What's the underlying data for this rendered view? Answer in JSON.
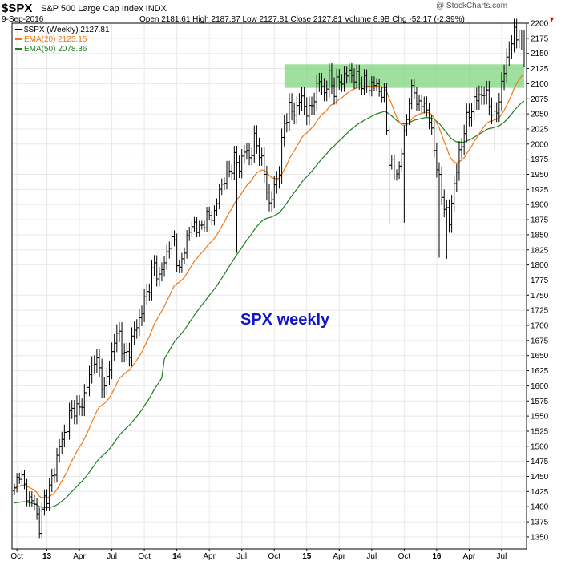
{
  "header": {
    "symbol": "$SPX",
    "name": "S&P 500 Large Cap Index INDX",
    "date": "9-Sep-2016",
    "quote": "Open 2181.61  High 2187.87  Low 2127.81  Close 2127.81  Volume 8.9B  Chg -52.17 (-2.39%)",
    "chg_arrow": "▼",
    "watermark": "@ StockCharts.com"
  },
  "legend": {
    "price": "$SPX (Weekly) 2127.81",
    "ema20": "EMA(20) 2125.15",
    "ema50": "EMA(50) 2078.36"
  },
  "chart_data": {
    "type": "ohlc",
    "annotation": "SPX weekly",
    "ylim": [
      1330,
      2200
    ],
    "yticks": [
      1350,
      1375,
      1400,
      1425,
      1450,
      1475,
      1500,
      1525,
      1550,
      1575,
      1600,
      1625,
      1650,
      1675,
      1700,
      1725,
      1750,
      1775,
      1800,
      1825,
      1850,
      1875,
      1900,
      1925,
      1950,
      1975,
      2000,
      2025,
      2050,
      2075,
      2100,
      2125,
      2150,
      2175,
      2200
    ],
    "xticks": [
      {
        "label": "Oct",
        "week": 1
      },
      {
        "label": "13",
        "week": 13
      },
      {
        "label": "Apr",
        "week": 26
      },
      {
        "label": "Jul",
        "week": 39
      },
      {
        "label": "Oct",
        "week": 52
      },
      {
        "label": "14",
        "week": 65
      },
      {
        "label": "Apr",
        "week": 78
      },
      {
        "label": "Jul",
        "week": 91
      },
      {
        "label": "Oct",
        "week": 104
      },
      {
        "label": "15",
        "week": 117
      },
      {
        "label": "Apr",
        "week": 130
      },
      {
        "label": "Jul",
        "week": 143
      },
      {
        "label": "Oct",
        "week": 156
      },
      {
        "label": "16",
        "week": 169
      },
      {
        "label": "Apr",
        "week": 182
      },
      {
        "label": "Jul",
        "week": 195
      }
    ],
    "weeks": 205,
    "resistance_zone": {
      "from_week": 109,
      "to_week": 204,
      "low": 2093,
      "high": 2132
    },
    "colors": {
      "price": "#000000",
      "ema20": "#f07818",
      "ema50": "#1e7d1e",
      "zone": "#7fd67f",
      "annotation": "#1414c8",
      "grid": "#e8e8e8"
    },
    "anchors": [
      [
        0,
        1425
      ],
      [
        2,
        1460
      ],
      [
        4,
        1430
      ],
      [
        6,
        1412
      ],
      [
        8,
        1405
      ],
      [
        10,
        1365
      ],
      [
        12,
        1412
      ],
      [
        14,
        1428
      ],
      [
        16,
        1462
      ],
      [
        18,
        1500
      ],
      [
        20,
        1520
      ],
      [
        22,
        1550
      ],
      [
        24,
        1565
      ],
      [
        26,
        1560
      ],
      [
        28,
        1585
      ],
      [
        30,
        1615
      ],
      [
        32,
        1648
      ],
      [
        34,
        1625
      ],
      [
        36,
        1592
      ],
      [
        38,
        1632
      ],
      [
        40,
        1675
      ],
      [
        42,
        1688
      ],
      [
        44,
        1645
      ],
      [
        46,
        1660
      ],
      [
        48,
        1690
      ],
      [
        50,
        1710
      ],
      [
        52,
        1740
      ],
      [
        54,
        1768
      ],
      [
        56,
        1800
      ],
      [
        58,
        1778
      ],
      [
        60,
        1805
      ],
      [
        62,
        1835
      ],
      [
        64,
        1840
      ],
      [
        66,
        1785
      ],
      [
        68,
        1830
      ],
      [
        70,
        1855
      ],
      [
        72,
        1870
      ],
      [
        74,
        1855
      ],
      [
        76,
        1875
      ],
      [
        78,
        1880
      ],
      [
        80,
        1885
      ],
      [
        82,
        1922
      ],
      [
        84,
        1945
      ],
      [
        86,
        1955
      ],
      [
        88,
        1975
      ],
      [
        90,
        1962
      ],
      [
        92,
        1990
      ],
      [
        94,
        1978
      ],
      [
        96,
        2005
      ],
      [
        98,
        1990
      ],
      [
        100,
        1950
      ],
      [
        102,
        1900
      ],
      [
        104,
        1925
      ],
      [
        106,
        1960
      ],
      [
        108,
        2035
      ],
      [
        110,
        2060
      ],
      [
        112,
        2050
      ],
      [
        114,
        2075
      ],
      [
        116,
        2065
      ],
      [
        118,
        2050
      ],
      [
        120,
        2080
      ],
      [
        122,
        2105
      ],
      [
        124,
        2085
      ],
      [
        126,
        2110
      ],
      [
        128,
        2090
      ],
      [
        130,
        2105
      ],
      [
        132,
        2110
      ],
      [
        134,
        2120
      ],
      [
        136,
        2110
      ],
      [
        138,
        2105
      ],
      [
        140,
        2100
      ],
      [
        142,
        2095
      ],
      [
        144,
        2100
      ],
      [
        146,
        2090
      ],
      [
        148,
        2080
      ],
      [
        150,
        1975
      ],
      [
        152,
        1950
      ],
      [
        154,
        1960
      ],
      [
        156,
        2015
      ],
      [
        158,
        2075
      ],
      [
        160,
        2090
      ],
      [
        162,
        2060
      ],
      [
        164,
        2070
      ],
      [
        166,
        2040
      ],
      [
        168,
        1995
      ],
      [
        170,
        1935
      ],
      [
        172,
        1900
      ],
      [
        174,
        1870
      ],
      [
        176,
        1935
      ],
      [
        178,
        1980
      ],
      [
        180,
        2025
      ],
      [
        182,
        2050
      ],
      [
        184,
        2070
      ],
      [
        186,
        2080
      ],
      [
        188,
        2085
      ],
      [
        190,
        2070
      ],
      [
        192,
        2040
      ],
      [
        194,
        2075
      ],
      [
        196,
        2120
      ],
      [
        198,
        2160
      ],
      [
        200,
        2180
      ],
      [
        202,
        2182
      ],
      [
        204,
        2128
      ]
    ],
    "big_bars": [
      {
        "week": 10,
        "low": 1348
      },
      {
        "week": 89,
        "low": 1820
      },
      {
        "week": 150,
        "low": 1867
      },
      {
        "week": 156,
        "low": 1870
      },
      {
        "week": 170,
        "low": 1812
      },
      {
        "week": 173,
        "low": 1810
      },
      {
        "week": 192,
        "low": 1990
      }
    ]
  }
}
